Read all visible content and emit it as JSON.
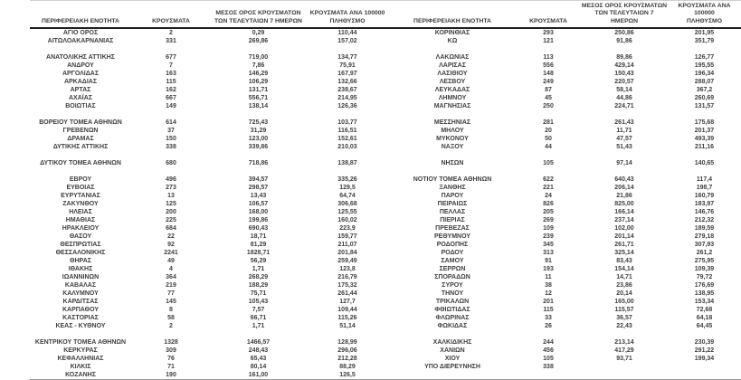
{
  "colors": {
    "text": "#3f3f3f",
    "header_rule": "#1f1f1f",
    "top_rule": "#cfcfcf",
    "bottom_rule": "#9a9a9a",
    "background": "#ffffff"
  },
  "table": {
    "headers": {
      "region": "ΠΕΡΙΦΕΡΕΙΑΚΗ ΕΝΟΤΗΤΑ",
      "cases": "ΚΡΟΥΣΜΑΤΑ",
      "avg7": "ΜΕΣΟΣ ΟΡΟΣ ΚΡΟΥΣΜΑΤΩΝ\nΤΩΝ ΤΕΛΕΥΤΑΙΩΝ 7 ΗΜΕΡΩΝ",
      "per100k": "ΚΡΟΥΣΜΑΤΑ ΑΝΑ 100000\nΠΛΗΘΥΣΜΟ"
    },
    "rows": [
      {
        "left": [
          "ΑΓΙΟ ΟΡΟΣ",
          "2",
          "0,29",
          "110,44"
        ],
        "right": [
          "ΚΟΡΙΝΘΙΑΣ",
          "293",
          "250,86",
          "201,95"
        ]
      },
      {
        "left": [
          "ΑΙΤΩΛΟΑΚΑΡΝΑΝΙΑΣ",
          "331",
          "269,86",
          "157,02"
        ],
        "right": [
          "ΚΩ",
          "121",
          "91,86",
          "351,79"
        ]
      },
      {
        "left": null,
        "right": null
      },
      {
        "left": [
          "ΑΝΑΤΟΛΙΚΗΣ ΑΤΤΙΚΗΣ",
          "677",
          "719,00",
          "134,77"
        ],
        "right": [
          "ΛΑΚΩΝΙΑΣ",
          "113",
          "89,86",
          "126,77"
        ]
      },
      {
        "left": [
          "ΑΝΔΡΟΥ",
          "7",
          "7,86",
          "75,91"
        ],
        "right": [
          "ΛΑΡΙΣΑΣ",
          "556",
          "429,14",
          "195,55"
        ]
      },
      {
        "left": [
          "ΑΡΓΟΛΙΔΑΣ",
          "163",
          "146,29",
          "167,97"
        ],
        "right": [
          "ΛΑΣΙΘΙΟΥ",
          "148",
          "150,43",
          "196,34"
        ]
      },
      {
        "left": [
          "ΑΡΚΑΔΙΑΣ",
          "115",
          "106,29",
          "132,66"
        ],
        "right": [
          "ΛΕΣΒΟΥ",
          "249",
          "220,57",
          "288,07"
        ]
      },
      {
        "left": [
          "ΑΡΤΑΣ",
          "162",
          "131,71",
          "238,67"
        ],
        "right": [
          "ΛΕΥΚΑΔΑΣ",
          "87",
          "58,14",
          "367,2"
        ]
      },
      {
        "left": [
          "ΑΧΑΪΑΣ",
          "667",
          "556,71",
          "214,95"
        ],
        "right": [
          "ΛΗΜΝΟΥ",
          "45",
          "44,86",
          "260,69"
        ]
      },
      {
        "left": [
          "ΒΟΙΩΤΙΑΣ",
          "149",
          "138,14",
          "126,36"
        ],
        "right": [
          "ΜΑΓΝΗΣΙΑΣ",
          "250",
          "224,71",
          "131,57"
        ]
      },
      {
        "left": null,
        "right": null
      },
      {
        "left": [
          "ΒΟΡΕΙΟΥ ΤΟΜΕΑ ΑΘΗΝΩΝ",
          "614",
          "725,43",
          "103,77"
        ],
        "right": [
          "ΜΕΣΣΗΝΙΑΣ",
          "281",
          "261,43",
          "175,68"
        ]
      },
      {
        "left": [
          "ΓΡΕΒΕΝΩΝ",
          "37",
          "31,29",
          "116,51"
        ],
        "right": [
          "ΜΗΛΟΥ",
          "20",
          "11,71",
          "201,37"
        ]
      },
      {
        "left": [
          "ΔΡΑΜΑΣ",
          "150",
          "123,00",
          "152,61"
        ],
        "right": [
          "ΜΥΚΟΝΟΥ",
          "50",
          "47,57",
          "493,39"
        ]
      },
      {
        "left": [
          "ΔΥΤΙΚΗΣ ΑΤΤΙΚΗΣ",
          "338",
          "339,86",
          "210,03"
        ],
        "right": [
          "ΝΑΞΟΥ",
          "44",
          "51,43",
          "211,16"
        ]
      },
      {
        "left": null,
        "right": null
      },
      {
        "left": [
          "ΔΥΤΙΚΟΥ ΤΟΜΕΑ ΑΘΗΝΩΝ",
          "680",
          "718,86",
          "138,87"
        ],
        "right": [
          "ΝΗΣΩΝ",
          "105",
          "97,14",
          "140,65"
        ]
      },
      {
        "left": null,
        "right": null
      },
      {
        "left": [
          "ΕΒΡΟΥ",
          "496",
          "394,57",
          "335,26"
        ],
        "right": [
          "ΝΟΤΙΟΥ ΤΟΜΕΑ ΑΘΗΝΩΝ",
          "622",
          "640,43",
          "117,4"
        ]
      },
      {
        "left": [
          "ΕΥΒΟΙΑΣ",
          "273",
          "298,57",
          "129,5"
        ],
        "right": [
          "ΞΑΝΘΗΣ",
          "221",
          "206,14",
          "198,7"
        ]
      },
      {
        "left": [
          "ΕΥΡΥΤΑΝΙΑΣ",
          "13",
          "13,43",
          "64,74"
        ],
        "right": [
          "ΠΑΡΟΥ",
          "24",
          "21,86",
          "160,79"
        ]
      },
      {
        "left": [
          "ΖΑΚΥΝΘΟΥ",
          "125",
          "106,57",
          "306,68"
        ],
        "right": [
          "ΠΕΙΡΑΙΩΣ",
          "826",
          "825,00",
          "183,97"
        ]
      },
      {
        "left": [
          "ΗΛΕΙΑΣ",
          "200",
          "168,00",
          "125,55"
        ],
        "right": [
          "ΠΕΛΛΑΣ",
          "205",
          "166,14",
          "146,76"
        ]
      },
      {
        "left": [
          "ΗΜΑΘΙΑΣ",
          "225",
          "199,86",
          "160,02"
        ],
        "right": [
          "ΠΙΕΡΙΑΣ",
          "269",
          "237,14",
          "212,32"
        ]
      },
      {
        "left": [
          "ΗΡΑΚΛΕΙΟΥ",
          "684",
          "690,43",
          "223,9"
        ],
        "right": [
          "ΠΡΕΒΕΖΑΣ",
          "109",
          "102,00",
          "189,59"
        ]
      },
      {
        "left": [
          "ΘΑΣΟΥ",
          "22",
          "18,71",
          "159,77"
        ],
        "right": [
          "ΡΕΘΥΜΝΟΥ",
          "239",
          "201,14",
          "279,18"
        ]
      },
      {
        "left": [
          "ΘΕΣΠΡΩΤΙΑΣ",
          "92",
          "81,29",
          "211,07"
        ],
        "right": [
          "ΡΟΔΟΠΗΣ",
          "345",
          "261,71",
          "307,93"
        ]
      },
      {
        "left": [
          "ΘΕΣΣΑΛΟΝΙΚΗΣ",
          "2241",
          "1828,71",
          "201,84"
        ],
        "right": [
          "ΡΟΔΟΥ",
          "313",
          "325,14",
          "261,2"
        ]
      },
      {
        "left": [
          "ΘΗΡΑΣ",
          "49",
          "56,29",
          "259,49"
        ],
        "right": [
          "ΣΑΜΟΥ",
          "91",
          "83,43",
          "275,95"
        ]
      },
      {
        "left": [
          "ΙΘΑΚΗΣ",
          "4",
          "1,71",
          "123,8"
        ],
        "right": [
          "ΣΕΡΡΩΝ",
          "193",
          "154,14",
          "109,39"
        ]
      },
      {
        "left": [
          "ΙΩΑΝΝΙΝΩΝ",
          "364",
          "268,29",
          "216,79"
        ],
        "right": [
          "ΣΠΟΡΑΔΩΝ",
          "11",
          "14,71",
          "79,72"
        ]
      },
      {
        "left": [
          "ΚΑΒΑΛΑΣ",
          "219",
          "188,29",
          "175,32"
        ],
        "right": [
          "ΣΥΡΟΥ",
          "38",
          "23,86",
          "176,69"
        ]
      },
      {
        "left": [
          "ΚΑΛΥΜΝΟΥ",
          "77",
          "75,71",
          "261,44"
        ],
        "right": [
          "ΤΗΝΟΥ",
          "12",
          "20,14",
          "138,95"
        ]
      },
      {
        "left": [
          "ΚΑΡΔΙΤΣΑΣ",
          "145",
          "105,43",
          "127,7"
        ],
        "right": [
          "ΤΡΙΚΑΛΩΝ",
          "201",
          "165,00",
          "153,34"
        ]
      },
      {
        "left": [
          "ΚΑΡΠΑΘΟΥ",
          "8",
          "7,57",
          "109,44"
        ],
        "right": [
          "ΦΘΙΩΤΙΔΑΣ",
          "115",
          "115,57",
          "72,68"
        ]
      },
      {
        "left": [
          "ΚΑΣΤΟΡΙΑΣ",
          "58",
          "66,71",
          "115,26"
        ],
        "right": [
          "ΦΛΩΡΙΝΑΣ",
          "33",
          "36,57",
          "64,18"
        ]
      },
      {
        "left": [
          "ΚΕΑΣ - ΚΥΘΝΟΥ",
          "2",
          "1,71",
          "51,14"
        ],
        "right": [
          "ΦΩΚΙΔΑΣ",
          "26",
          "22,43",
          "64,45"
        ]
      },
      {
        "left": null,
        "right": null
      },
      {
        "left": [
          "ΚΕΝΤΡΙΚΟΥ ΤΟΜΕΑ ΑΘΗΝΩΝ",
          "1328",
          "1466,57",
          "128,99"
        ],
        "right": [
          "ΧΑΛΚΙΔΙΚΗΣ",
          "244",
          "213,14",
          "230,39"
        ]
      },
      {
        "left": [
          "ΚΕΡΚΥΡΑΣ",
          "309",
          "248,43",
          "296,06"
        ],
        "right": [
          "ΧΑΝΙΩΝ",
          "456",
          "417,29",
          "291,22"
        ]
      },
      {
        "left": [
          "ΚΕΦΑΛΛΗΝΙΑΣ",
          "76",
          "65,43",
          "212,28"
        ],
        "right": [
          "ΧΙΟΥ",
          "105",
          "93,71",
          "199,34"
        ]
      },
      {
        "left": [
          "ΚΙΛΚΙΣ",
          "71",
          "80,14",
          "88,29"
        ],
        "right": [
          "ΥΠΟ ΔΙΕΡΕΥΝΗΣΗ",
          "338",
          "",
          ""
        ]
      },
      {
        "left": [
          "ΚΟΖΑΝΗΣ",
          "190",
          "161,00",
          "126,5"
        ],
        "right": null
      }
    ]
  }
}
